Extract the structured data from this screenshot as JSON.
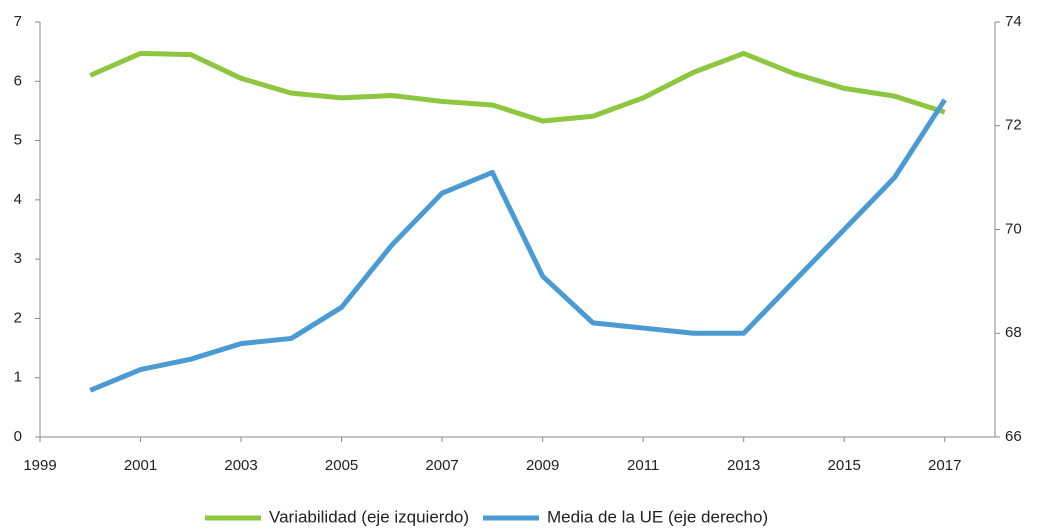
{
  "chart_data": {
    "type": "line",
    "x": [
      2000,
      2001,
      2002,
      2003,
      2004,
      2005,
      2006,
      2007,
      2008,
      2009,
      2010,
      2011,
      2012,
      2013,
      2014,
      2015,
      2016,
      2017
    ],
    "series": [
      {
        "name": "Variabilidad (eje izquierdo)",
        "color": "#8dc63f",
        "values": [
          6.1,
          6.47,
          6.45,
          6.05,
          5.8,
          5.72,
          5.76,
          5.66,
          5.6,
          5.33,
          5.41,
          5.72,
          6.15,
          6.47,
          6.13,
          5.88,
          5.75,
          5.48
        ]
      },
      {
        "name": "Media de la UE (eje derecho)",
        "color": "#4a9bd4",
        "axis": "y2",
        "values": [
          66.9,
          67.3,
          67.5,
          67.8,
          67.9,
          68.5,
          69.7,
          70.7,
          71.1,
          69.1,
          68.2,
          68.1,
          68.0,
          68.0,
          69.0,
          70.0,
          71.0,
          72.5
        ]
      }
    ],
    "xlim": [
      1999,
      2018
    ],
    "xticks": [
      1999,
      2001,
      2003,
      2005,
      2007,
      2009,
      2011,
      2013,
      2015,
      2017
    ],
    "ylim": [
      0,
      7
    ],
    "yticks": [
      0,
      1,
      2,
      3,
      4,
      5,
      6,
      7
    ],
    "y2lim": [
      66,
      74
    ],
    "y2ticks": [
      66,
      68,
      70,
      72,
      74
    ],
    "legend": "bottom"
  }
}
